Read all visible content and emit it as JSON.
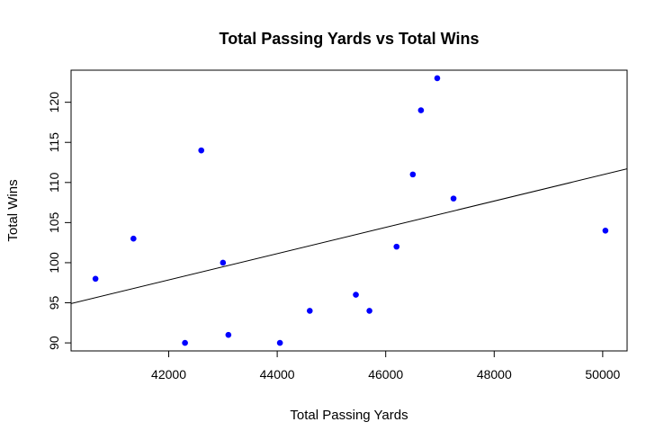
{
  "chart_data": {
    "type": "scatter",
    "title": "Total Passing Yards vs Total Wins",
    "xlabel": "Total Passing Yards",
    "ylabel": "Total Wins",
    "xlim": [
      40200,
      50450
    ],
    "ylim": [
      89,
      124
    ],
    "x_ticks": [
      42000,
      44000,
      46000,
      48000,
      50000
    ],
    "y_ticks": [
      90,
      95,
      100,
      105,
      110,
      115,
      120
    ],
    "grid": false,
    "legend": "none",
    "point_color": "#0000ff",
    "line_color": "#000000",
    "points": [
      {
        "x": 40650,
        "y": 98
      },
      {
        "x": 41350,
        "y": 103
      },
      {
        "x": 42300,
        "y": 90
      },
      {
        "x": 42600,
        "y": 114
      },
      {
        "x": 43000,
        "y": 100
      },
      {
        "x": 43100,
        "y": 91
      },
      {
        "x": 44050,
        "y": 90
      },
      {
        "x": 44600,
        "y": 94
      },
      {
        "x": 45450,
        "y": 96
      },
      {
        "x": 45700,
        "y": 94
      },
      {
        "x": 46200,
        "y": 102
      },
      {
        "x": 46500,
        "y": 111
      },
      {
        "x": 46650,
        "y": 119
      },
      {
        "x": 46950,
        "y": 123
      },
      {
        "x": 47250,
        "y": 108
      },
      {
        "x": 50050,
        "y": 104
      }
    ],
    "regression": {
      "x": [
        40200,
        50450
      ],
      "y": [
        94.9,
        111.7
      ]
    }
  }
}
